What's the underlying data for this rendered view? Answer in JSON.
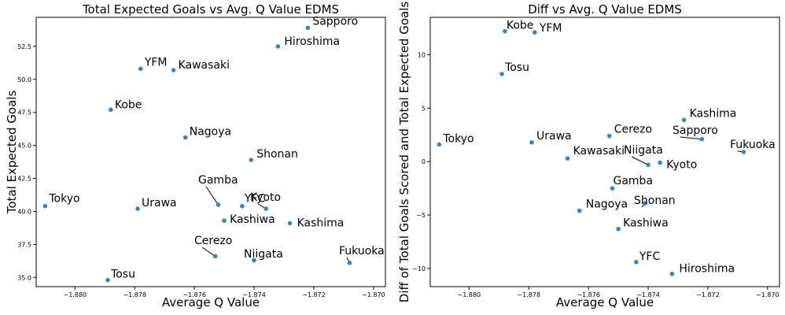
{
  "chart_data": [
    {
      "type": "scatter",
      "title": "Total Expected Goals vs Avg. Q Value EDMS",
      "xlabel": "Average Q Value",
      "ylabel": "Total Expected Goals",
      "xlim": [
        -1.8813,
        -1.8696
      ],
      "ylim": [
        34.3,
        54.7
      ],
      "xticks": [
        -1.88,
        -1.878,
        -1.876,
        -1.874,
        -1.872,
        -1.87
      ],
      "xtick_labels": [
        "−1.880",
        "−1.878",
        "−1.876",
        "−1.874",
        "−1.872",
        "−1.870"
      ],
      "yticks": [
        35.0,
        37.5,
        40.0,
        42.5,
        45.0,
        47.5,
        50.0,
        52.5
      ],
      "ytick_labels": [
        "35.0",
        "37.5",
        "40.0",
        "42.5",
        "45.0",
        "47.5",
        "50.0",
        "52.5"
      ],
      "color": "#3b83bd",
      "points": [
        {
          "name": "Sapporo",
          "x": -1.8722,
          "y": 53.9
        },
        {
          "name": "Hiroshima",
          "x": -1.8732,
          "y": 52.5
        },
        {
          "name": "YFM",
          "x": -1.8778,
          "y": 50.8
        },
        {
          "name": "Kawasaki",
          "x": -1.8767,
          "y": 50.7
        },
        {
          "name": "Kobe",
          "x": -1.8788,
          "y": 47.7
        },
        {
          "name": "Nagoya",
          "x": -1.8763,
          "y": 45.6
        },
        {
          "name": "Shonan",
          "x": -1.8741,
          "y": 43.9
        },
        {
          "name": "Tokyo",
          "x": -1.881,
          "y": 40.4
        },
        {
          "name": "Urawa",
          "x": -1.8779,
          "y": 40.2
        },
        {
          "name": "Gamba",
          "x": -1.8752,
          "y": 40.5
        },
        {
          "name": "YFC",
          "x": -1.8744,
          "y": 40.4
        },
        {
          "name": "Kyoto",
          "x": -1.8736,
          "y": 40.2
        },
        {
          "name": "Kashiwa",
          "x": -1.875,
          "y": 39.3
        },
        {
          "name": "Kashima",
          "x": -1.8728,
          "y": 39.1
        },
        {
          "name": "Cerezo",
          "x": -1.8753,
          "y": 36.6
        },
        {
          "name": "Niigata",
          "x": -1.874,
          "y": 36.3
        },
        {
          "name": "Fukuoka",
          "x": -1.8708,
          "y": 36.1
        },
        {
          "name": "Tosu",
          "x": -1.8789,
          "y": 34.8
        }
      ]
    },
    {
      "type": "scatter",
      "title": "Diff vs Avg. Q Value EDMS",
      "xlabel": "Average Q Value",
      "ylabel": "Diff of Total Goals Scored and Total Expected Goals",
      "xlim": [
        -1.8813,
        -1.8696
      ],
      "ylim": [
        -11.7,
        13.5
      ],
      "xticks": [
        -1.88,
        -1.878,
        -1.876,
        -1.874,
        -1.872,
        -1.87
      ],
      "xtick_labels": [
        "−1.880",
        "−1.878",
        "−1.876",
        "−1.874",
        "−1.872",
        "−1.870"
      ],
      "yticks": [
        -10,
        -5,
        0,
        5,
        10
      ],
      "ytick_labels": [
        "−10",
        "−5",
        "0",
        "5",
        "10"
      ],
      "color": "#3b83bd",
      "points": [
        {
          "name": "Kobe",
          "x": -1.8788,
          "y": 12.2
        },
        {
          "name": "YFM",
          "x": -1.8778,
          "y": 12.1
        },
        {
          "name": "Tosu",
          "x": -1.8789,
          "y": 8.2
        },
        {
          "name": "Kashima",
          "x": -1.8728,
          "y": 3.9
        },
        {
          "name": "Cerezo",
          "x": -1.8753,
          "y": 2.4
        },
        {
          "name": "Sapporo",
          "x": -1.8722,
          "y": 2.1
        },
        {
          "name": "Urawa",
          "x": -1.8779,
          "y": 1.8
        },
        {
          "name": "Tokyo",
          "x": -1.881,
          "y": 1.6
        },
        {
          "name": "Fukuoka",
          "x": -1.8708,
          "y": 0.9
        },
        {
          "name": "Kawasaki",
          "x": -1.8767,
          "y": 0.3
        },
        {
          "name": "Niigata",
          "x": -1.874,
          "y": -0.3
        },
        {
          "name": "Kyoto",
          "x": -1.8736,
          "y": -0.1
        },
        {
          "name": "Gamba",
          "x": -1.8752,
          "y": -2.5
        },
        {
          "name": "Shonan",
          "x": -1.8741,
          "y": -3.9
        },
        {
          "name": "Nagoya",
          "x": -1.8763,
          "y": -4.6
        },
        {
          "name": "Kashiwa",
          "x": -1.875,
          "y": -6.3
        },
        {
          "name": "YFC",
          "x": -1.8744,
          "y": -9.4
        },
        {
          "name": "Hiroshima",
          "x": -1.8732,
          "y": -10.5
        }
      ]
    }
  ]
}
